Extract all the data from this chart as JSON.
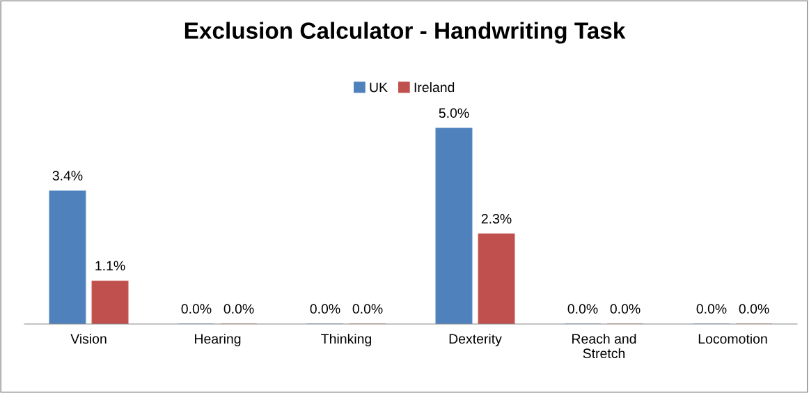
{
  "chart_data": {
    "type": "bar",
    "title": "Exclusion Calculator - Handwriting Task",
    "categories": [
      "Vision",
      "Hearing",
      "Thinking",
      "Dexterity",
      "Reach and\nStretch",
      "Locomotion"
    ],
    "series": [
      {
        "name": "UK",
        "color": "#4f81bd",
        "values": [
          3.4,
          0.0,
          0.0,
          5.0,
          0.0,
          0.0
        ],
        "value_labels": [
          "3.4%",
          "0.0%",
          "0.0%",
          "5.0%",
          "0.0%",
          "0.0%"
        ]
      },
      {
        "name": "Ireland",
        "color": "#c0504d",
        "values": [
          1.1,
          0.0,
          0.0,
          2.3,
          0.0,
          0.0
        ],
        "value_labels": [
          "1.1%",
          "0.0%",
          "0.0%",
          "2.3%",
          "0.0%",
          "0.0%"
        ]
      }
    ],
    "legend": "top",
    "grid": false,
    "tick_labels": "x"
  }
}
